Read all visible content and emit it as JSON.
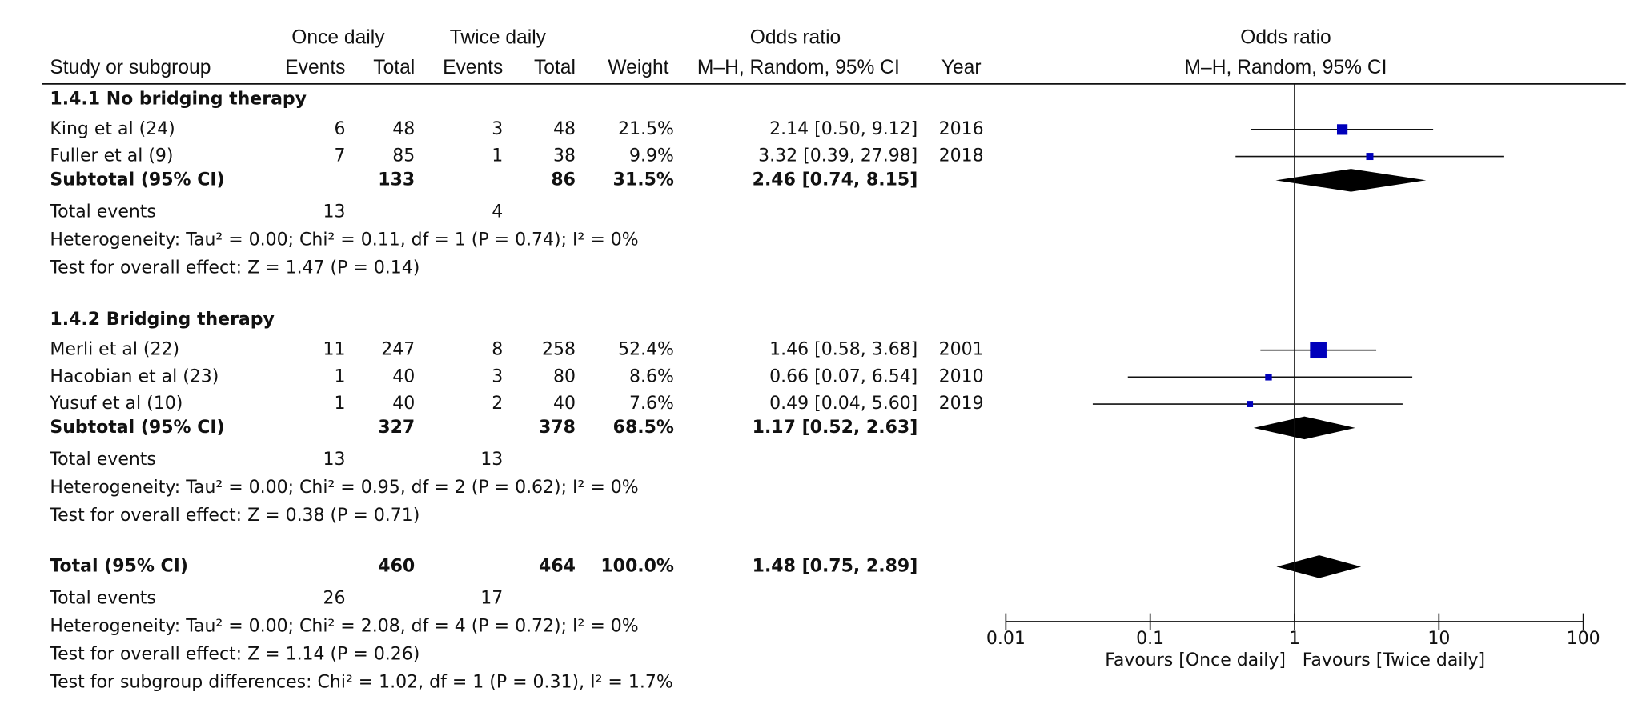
{
  "chart_data": {
    "type": "forest",
    "column_groups": [
      "Once daily",
      "Twice daily",
      "Odds ratio"
    ],
    "columns": [
      "Study or subgroup",
      "Events",
      "Total",
      "Events",
      "Total",
      "Weight",
      "M–H, Random, 95% CI",
      "Year"
    ],
    "plot_title": "Odds ratio",
    "plot_subtitle": "M–H, Random, 95% CI",
    "subgroups": [
      {
        "title": "1.4.1 No bridging therapy",
        "studies": [
          {
            "name": "King et al (24)",
            "events1": 6,
            "total1": 48,
            "events2": 3,
            "total2": 48,
            "weight": 21.5,
            "weight_label": "21.5%",
            "or": 2.14,
            "lower": 0.5,
            "upper": 9.12,
            "ci_label": "2.14 [0.50, 9.12]",
            "year": 2016
          },
          {
            "name": "Fuller et al (9)",
            "events1": 7,
            "total1": 85,
            "events2": 1,
            "total2": 38,
            "weight": 9.9,
            "weight_label": "9.9%",
            "or": 3.32,
            "lower": 0.39,
            "upper": 27.98,
            "ci_label": "3.32 [0.39, 27.98]",
            "year": 2018
          }
        ],
        "subtotal": {
          "label": "Subtotal (95% CI)",
          "total1": 133,
          "total2": 86,
          "weight": "31.5%",
          "or": 2.46,
          "lower": 0.74,
          "upper": 8.15,
          "ci_label": "2.46 [0.74, 8.15]"
        },
        "total_events": {
          "label": "Total events",
          "events1": 13,
          "events2": 4
        },
        "notes": [
          "Heterogeneity: Tau² = 0.00; Chi² = 0.11, df = 1 (P = 0.74); I² = 0%",
          "Test for overall effect: Z = 1.47 (P = 0.14)"
        ]
      },
      {
        "title": "1.4.2 Bridging therapy",
        "studies": [
          {
            "name": "Merli et al (22)",
            "events1": 11,
            "total1": 247,
            "events2": 8,
            "total2": 258,
            "weight": 52.4,
            "weight_label": "52.4%",
            "or": 1.46,
            "lower": 0.58,
            "upper": 3.68,
            "ci_label": "1.46 [0.58, 3.68]",
            "year": 2001
          },
          {
            "name": "Hacobian et al (23)",
            "events1": 1,
            "total1": 40,
            "events2": 3,
            "total2": 80,
            "weight": 8.6,
            "weight_label": "8.6%",
            "or": 0.66,
            "lower": 0.07,
            "upper": 6.54,
            "ci_label": "0.66 [0.07, 6.54]",
            "year": 2010
          },
          {
            "name": "Yusuf et al (10)",
            "events1": 1,
            "total1": 40,
            "events2": 2,
            "total2": 40,
            "weight": 7.6,
            "weight_label": "7.6%",
            "or": 0.49,
            "lower": 0.04,
            "upper": 5.6,
            "ci_label": "0.49 [0.04, 5.60]",
            "year": 2019
          }
        ],
        "subtotal": {
          "label": "Subtotal (95% CI)",
          "total1": 327,
          "total2": 378,
          "weight": "68.5%",
          "or": 1.17,
          "lower": 0.52,
          "upper": 2.63,
          "ci_label": "1.17 [0.52, 2.63]"
        },
        "total_events": {
          "label": "Total events",
          "events1": 13,
          "events2": 13
        },
        "notes": [
          "Heterogeneity: Tau² = 0.00; Chi² = 0.95, df = 2 (P = 0.62); I² = 0%",
          "Test for overall effect: Z = 0.38 (P = 0.71)"
        ]
      }
    ],
    "total": {
      "label": "Total (95% CI)",
      "total1": 460,
      "total2": 464,
      "weight": "100.0%",
      "or": 1.48,
      "lower": 0.75,
      "upper": 2.89,
      "ci_label": "1.48 [0.75, 2.89]",
      "total_events": {
        "label": "Total events",
        "events1": 26,
        "events2": 17
      },
      "notes": [
        "Heterogeneity: Tau² = 0.00; Chi² = 2.08, df = 4 (P = 0.72); I² = 0%",
        "Test for overall effect: Z = 1.14 (P = 0.26)",
        "Test for subgroup differences: Chi² = 1.02, df = 1 (P = 0.31), I² = 1.7%"
      ]
    },
    "xlim": [
      0.01,
      100
    ],
    "xticks": [
      0.01,
      0.1,
      1,
      10,
      100
    ],
    "log": true,
    "x_labels": [
      "Favours [Once daily]",
      "Favours [Twice daily]"
    ],
    "marker_color": "#0000bb",
    "diamond_color": "#000000"
  }
}
